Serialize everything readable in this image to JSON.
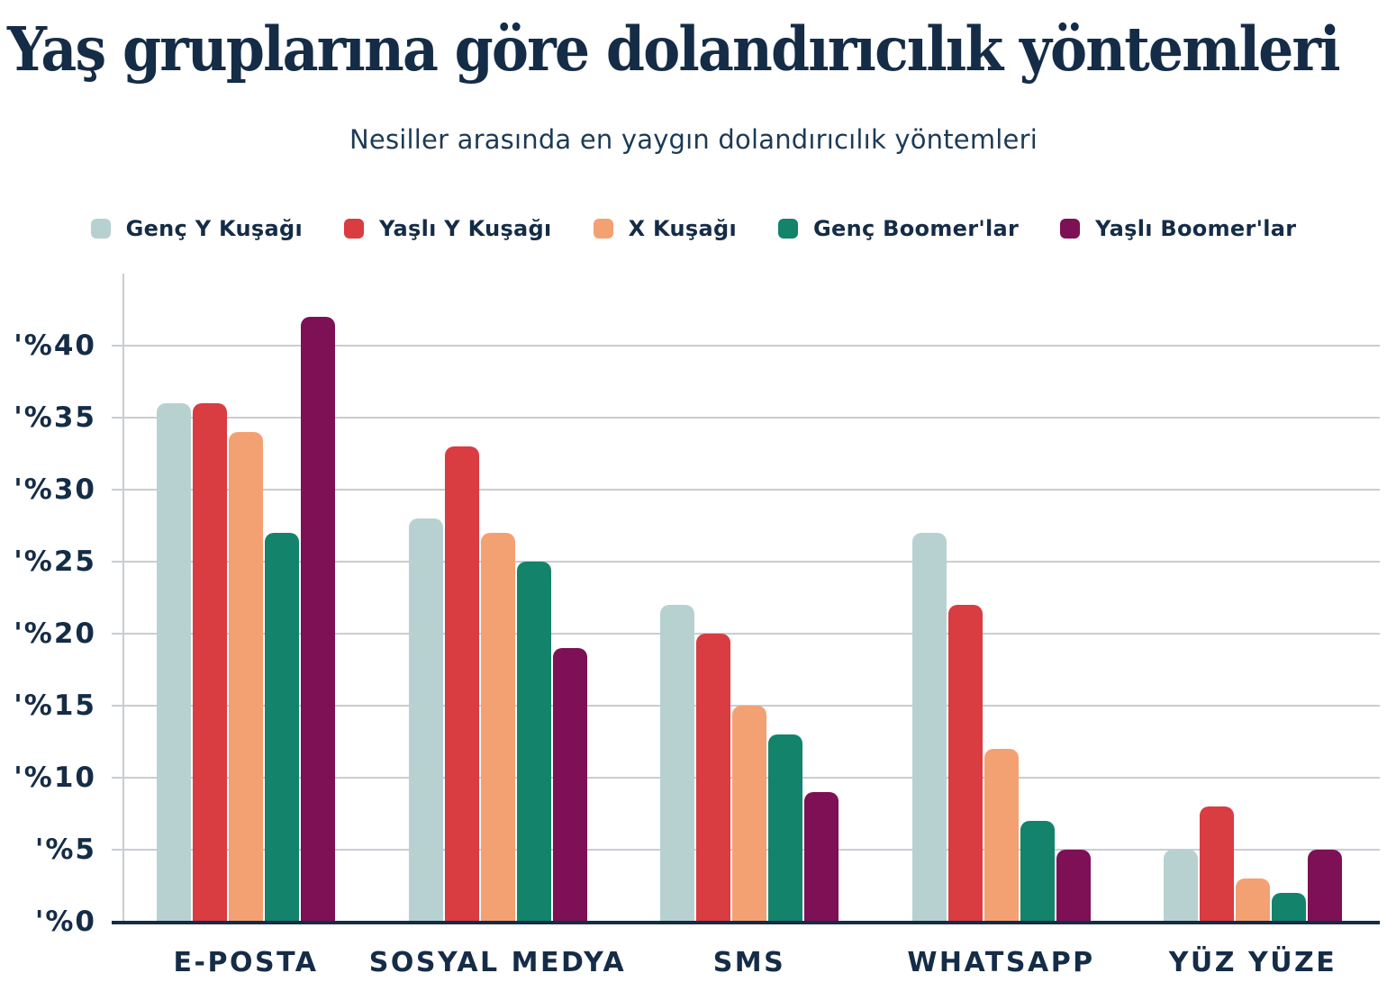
{
  "chart_data": {
    "type": "bar",
    "title": "Yaş gruplarına göre dolandırıcılık yöntemleri",
    "subtitle": "Nesiller arasında en yaygın dolandırıcılık yöntemleri",
    "categories": [
      "E-POSTA",
      "SOSYAL MEDYA",
      "SMS",
      "WHATSAPP",
      "YÜZ YÜZE"
    ],
    "series": [
      {
        "name": "Genç Y Kuşağı",
        "color": "#b7d1d1",
        "values": [
          36,
          28,
          22,
          27,
          5
        ]
      },
      {
        "name": "Yaşlı Y Kuşağı",
        "color": "#d93c41",
        "values": [
          36,
          33,
          20,
          22,
          8
        ]
      },
      {
        "name": "X Kuşağı",
        "color": "#f3a173",
        "values": [
          34,
          27,
          15,
          12,
          3
        ]
      },
      {
        "name": "Genç Boomer'lar",
        "color": "#13836b",
        "values": [
          27,
          25,
          13,
          7,
          2
        ]
      },
      {
        "name": "Yaşlı Boomer'lar",
        "color": "#7e1055",
        "values": [
          42,
          19,
          9,
          5,
          5
        ]
      }
    ],
    "ytick_labels": [
      "'%0",
      "'%5",
      "'%10",
      "'%15",
      "'%20",
      "'%25",
      "'%30",
      "'%35",
      "'%40"
    ],
    "ytick_values": [
      0,
      5,
      10,
      15,
      20,
      25,
      30,
      35,
      40
    ],
    "ylim": [
      0,
      45
    ],
    "unit": "percent",
    "grid": true,
    "legend_position": "top"
  },
  "palette": {
    "navy": "#152c47",
    "navy_soft": "#1d3a55",
    "gridline": "#c8cdd3",
    "background": "#ffffff"
  }
}
